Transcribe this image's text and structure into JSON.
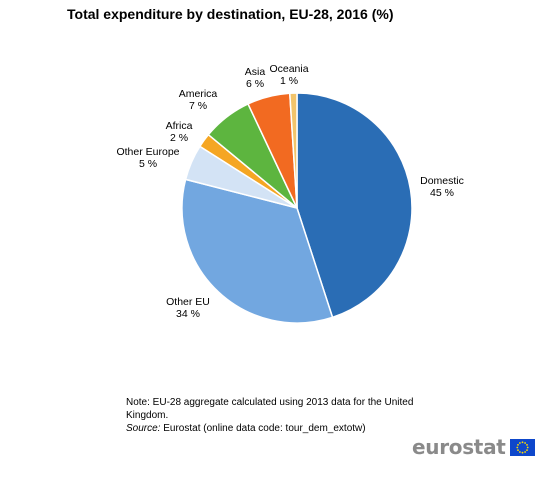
{
  "title": "Total expenditure by destination, EU-28, 2016 (%)",
  "chart_data": {
    "type": "pie",
    "title": "Total expenditure by destination, EU-28, 2016 (%)",
    "slices": [
      {
        "label": "Domestic",
        "value": 45,
        "display": "45 %",
        "color": "#2a6db5"
      },
      {
        "label": "Other EU",
        "value": 34,
        "display": "34 %",
        "color": "#72a7e0"
      },
      {
        "label": "Other Europe",
        "value": 5,
        "display": "5 %",
        "color": "#d3e3f5"
      },
      {
        "label": "Africa",
        "value": 2,
        "display": "2 %",
        "color": "#f5a623"
      },
      {
        "label": "America",
        "value": 7,
        "display": "7 %",
        "color": "#5db53f"
      },
      {
        "label": "Asia",
        "value": 6,
        "display": "6 %",
        "color": "#f26a21"
      },
      {
        "label": "Oceania",
        "value": 1,
        "display": "1 %",
        "color": "#f2c46b"
      }
    ],
    "legend": "none",
    "label_placement": "outside"
  },
  "note": {
    "text": "Note: EU-28 aggregate calculated using 2013 data for the United Kingdom.",
    "source_label": "Source:",
    "source_text": " Eurostat (online data code: tour_dem_extotw)"
  },
  "brand": {
    "name": "eurostat",
    "flag_blue": "#0e47cb",
    "flag_star": "#ffdd00"
  }
}
